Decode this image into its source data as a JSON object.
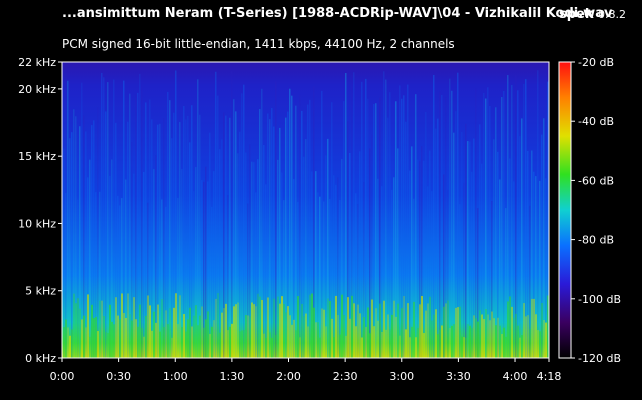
{
  "header": {
    "file_title": "...ansimittum Neram (T-Series) [1988-ACDRip-WAV]\\04 - Vizhikalil Kodi.wav",
    "app_name": "spek",
    "app_version": "0.8.2",
    "stream_info": "PCM signed 16-bit little-endian, 1411 kbps, 44100 Hz, 2 channels"
  },
  "chart_data": {
    "type": "heatmap",
    "title": "",
    "y_axis": {
      "label": "",
      "unit": "kHz",
      "range": [
        0,
        22
      ],
      "ticks": [
        {
          "value": 0,
          "label": "0 kHz"
        },
        {
          "value": 5,
          "label": "5 kHz"
        },
        {
          "value": 10,
          "label": "10 kHz"
        },
        {
          "value": 15,
          "label": "15 kHz"
        },
        {
          "value": 20,
          "label": "20 kHz"
        },
        {
          "value": 22,
          "label": "22 kHz"
        }
      ]
    },
    "x_axis": {
      "label": "",
      "unit": "seconds",
      "range": [
        0,
        258
      ],
      "ticks": [
        {
          "value": 0,
          "label": "0:00"
        },
        {
          "value": 30,
          "label": "0:30"
        },
        {
          "value": 60,
          "label": "1:00"
        },
        {
          "value": 90,
          "label": "1:30"
        },
        {
          "value": 120,
          "label": "2:00"
        },
        {
          "value": 150,
          "label": "2:30"
        },
        {
          "value": 180,
          "label": "3:00"
        },
        {
          "value": 210,
          "label": "3:30"
        },
        {
          "value": 240,
          "label": "4:00"
        },
        {
          "value": 258,
          "label": "4:18"
        }
      ]
    },
    "color_scale": {
      "unit": "dB",
      "range": [
        -120,
        -20
      ],
      "ticks": [
        {
          "value": -20,
          "label": "-20 dB"
        },
        {
          "value": -40,
          "label": "-40 dB"
        },
        {
          "value": -60,
          "label": "-60 dB"
        },
        {
          "value": -80,
          "label": "-80 dB"
        },
        {
          "value": -100,
          "label": "-100 dB"
        },
        {
          "value": -120,
          "label": "-120 dB"
        }
      ],
      "colors": [
        "#000000",
        "#3a0060",
        "#2a1ad8",
        "#0a70ff",
        "#10d0d0",
        "#30e020",
        "#e0e000",
        "#ff8000",
        "#ff1010"
      ]
    }
  }
}
